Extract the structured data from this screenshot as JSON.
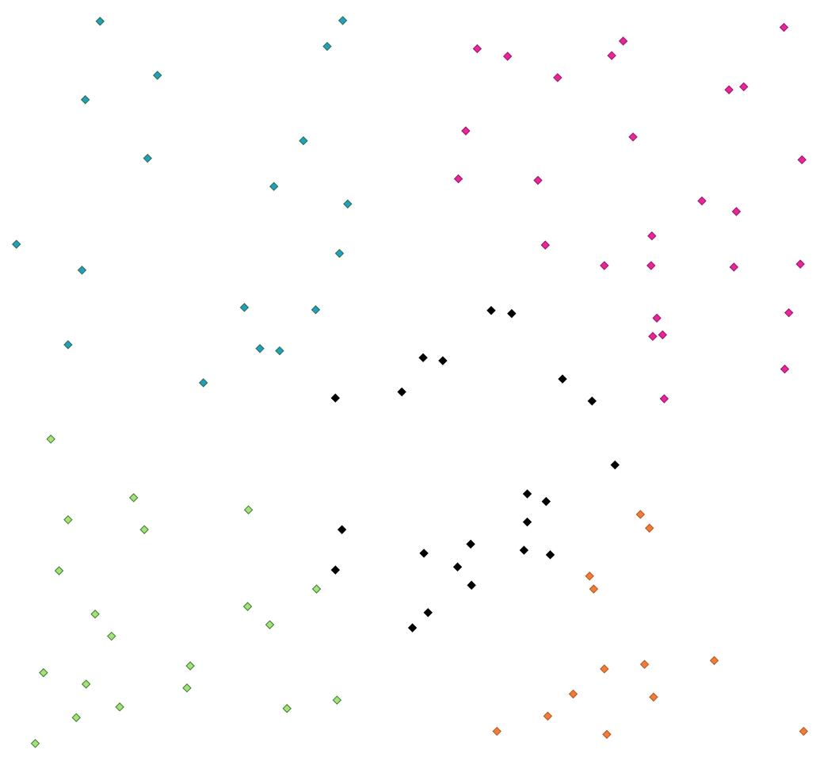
{
  "chart_data": {
    "type": "scatter",
    "title": "",
    "xlabel": "",
    "ylabel": "",
    "xlim": [
      0,
      100
    ],
    "ylim": [
      0,
      100
    ],
    "grid": false,
    "axes_visible": false,
    "marker": "diamond",
    "series": [
      {
        "color": "#1f9fc4",
        "stroke": "#2e6b3a",
        "points": [
          [
            12.2,
            97.2
          ],
          [
            41.8,
            97.3
          ],
          [
            39.9,
            93.9
          ],
          [
            19.2,
            90.1
          ],
          [
            10.4,
            86.9
          ],
          [
            37.0,
            81.5
          ],
          [
            18.0,
            79.2
          ],
          [
            33.4,
            75.5
          ],
          [
            42.4,
            73.2
          ],
          [
            2.0,
            67.9
          ],
          [
            41.4,
            66.7
          ],
          [
            10.0,
            64.5
          ],
          [
            29.8,
            59.6
          ],
          [
            38.5,
            59.3
          ],
          [
            8.3,
            54.7
          ],
          [
            31.7,
            54.2
          ],
          [
            34.1,
            53.9
          ],
          [
            24.8,
            49.7
          ]
        ]
      },
      {
        "color": "#e8259a",
        "stroke": "#9a1560",
        "points": [
          [
            58.2,
            93.6
          ],
          [
            61.9,
            92.6
          ],
          [
            76.0,
            94.6
          ],
          [
            74.6,
            92.7
          ],
          [
            95.6,
            96.4
          ],
          [
            68.0,
            89.8
          ],
          [
            88.9,
            88.2
          ],
          [
            90.7,
            88.6
          ],
          [
            56.8,
            82.8
          ],
          [
            77.2,
            82.0
          ],
          [
            97.8,
            79.0
          ],
          [
            55.9,
            76.5
          ],
          [
            65.6,
            76.3
          ],
          [
            85.6,
            73.6
          ],
          [
            89.8,
            72.2
          ],
          [
            79.5,
            69.0
          ],
          [
            66.5,
            67.8
          ],
          [
            73.7,
            65.1
          ],
          [
            79.4,
            65.1
          ],
          [
            89.5,
            64.9
          ],
          [
            97.6,
            65.3
          ],
          [
            96.2,
            58.9
          ],
          [
            80.1,
            58.2
          ],
          [
            79.6,
            55.8
          ],
          [
            80.8,
            56.0
          ],
          [
            95.7,
            51.5
          ],
          [
            81.0,
            47.6
          ]
        ]
      },
      {
        "color": "#000000",
        "stroke": "#000000",
        "points": [
          [
            59.9,
            59.2
          ],
          [
            62.4,
            58.8
          ],
          [
            51.6,
            53.0
          ],
          [
            54.0,
            52.6
          ],
          [
            40.9,
            47.7
          ],
          [
            49.0,
            48.5
          ],
          [
            68.6,
            50.2
          ],
          [
            72.2,
            47.3
          ],
          [
            75.0,
            38.9
          ],
          [
            64.3,
            35.1
          ],
          [
            66.6,
            34.1
          ],
          [
            64.3,
            31.4
          ],
          [
            41.7,
            30.4
          ],
          [
            57.4,
            28.5
          ],
          [
            51.7,
            27.3
          ],
          [
            63.9,
            27.7
          ],
          [
            67.1,
            27.1
          ],
          [
            40.9,
            25.1
          ],
          [
            55.8,
            25.5
          ],
          [
            57.5,
            23.1
          ],
          [
            52.2,
            19.5
          ],
          [
            50.3,
            17.5
          ]
        ]
      },
      {
        "color": "#a6e07a",
        "stroke": "#3a7a2a",
        "points": [
          [
            6.2,
            42.3
          ],
          [
            16.3,
            34.6
          ],
          [
            8.3,
            31.7
          ],
          [
            17.6,
            30.4
          ],
          [
            30.3,
            33.0
          ],
          [
            7.2,
            25.0
          ],
          [
            38.6,
            22.6
          ],
          [
            30.2,
            20.3
          ],
          [
            11.6,
            19.3
          ],
          [
            32.9,
            17.9
          ],
          [
            13.6,
            16.4
          ],
          [
            23.2,
            12.5
          ],
          [
            5.3,
            11.6
          ],
          [
            10.5,
            10.1
          ],
          [
            22.8,
            9.6
          ],
          [
            14.6,
            7.1
          ],
          [
            35.0,
            6.9
          ],
          [
            41.1,
            8.0
          ],
          [
            9.3,
            5.7
          ],
          [
            4.3,
            2.3
          ]
        ]
      },
      {
        "color": "#f07c3a",
        "stroke": "#b4541c",
        "points": [
          [
            78.1,
            32.4
          ],
          [
            79.2,
            30.6
          ],
          [
            71.9,
            24.3
          ],
          [
            72.4,
            22.6
          ],
          [
            87.1,
            13.2
          ],
          [
            78.6,
            12.7
          ],
          [
            73.7,
            12.1
          ],
          [
            69.9,
            8.8
          ],
          [
            79.7,
            8.4
          ],
          [
            66.8,
            5.9
          ],
          [
            60.6,
            3.9
          ],
          [
            74.0,
            3.5
          ],
          [
            98.0,
            3.9
          ]
        ]
      }
    ]
  }
}
